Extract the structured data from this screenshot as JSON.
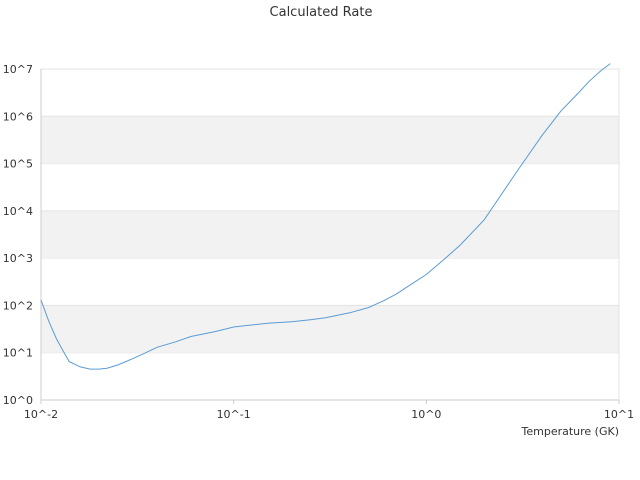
{
  "chart_data": {
    "type": "line",
    "title": "Calculated Rate",
    "xlabel": "Temperature (GK)",
    "ylabel": "",
    "x_scale": "log",
    "y_scale": "log",
    "xlim": [
      0.01,
      10
    ],
    "ylim": [
      1,
      10000000
    ],
    "x_ticks": [
      "10^-2",
      "10^-1",
      "10^0",
      "10^1"
    ],
    "y_ticks": [
      "10^0",
      "10^1",
      "10^2",
      "10^3",
      "10^4",
      "10^5",
      "10^6",
      "10^7"
    ],
    "grid": "horizontal bands",
    "legend": "none",
    "colors": {
      "line": "#5b9bd5",
      "band": "#f2f2f2",
      "axis": "#cccccc"
    },
    "series": [
      {
        "x": [
          0.01,
          0.011,
          0.012,
          0.013,
          0.014,
          0.016,
          0.018,
          0.02,
          0.022,
          0.025,
          0.03,
          0.035,
          0.04,
          0.05,
          0.06,
          0.07,
          0.08,
          0.1,
          0.12,
          0.15,
          0.2,
          0.25,
          0.3,
          0.4,
          0.5,
          0.6,
          0.7,
          0.8,
          1.0,
          1.2,
          1.5,
          2.0,
          2.5,
          3.0,
          4.0,
          5.0,
          6.0,
          7.0,
          8.0,
          9.0
        ],
        "y": [
          130,
          45,
          20,
          11,
          6.5,
          5,
          4.5,
          4.5,
          4.7,
          5.5,
          7.5,
          10,
          13,
          17,
          22,
          25,
          28,
          35,
          38,
          42,
          45,
          50,
          55,
          70,
          90,
          125,
          175,
          250,
          450,
          850,
          1900,
          6500,
          25000,
          75000,
          400000,
          1300000,
          2800000,
          5500000,
          9000000,
          13000000
        ]
      }
    ]
  }
}
